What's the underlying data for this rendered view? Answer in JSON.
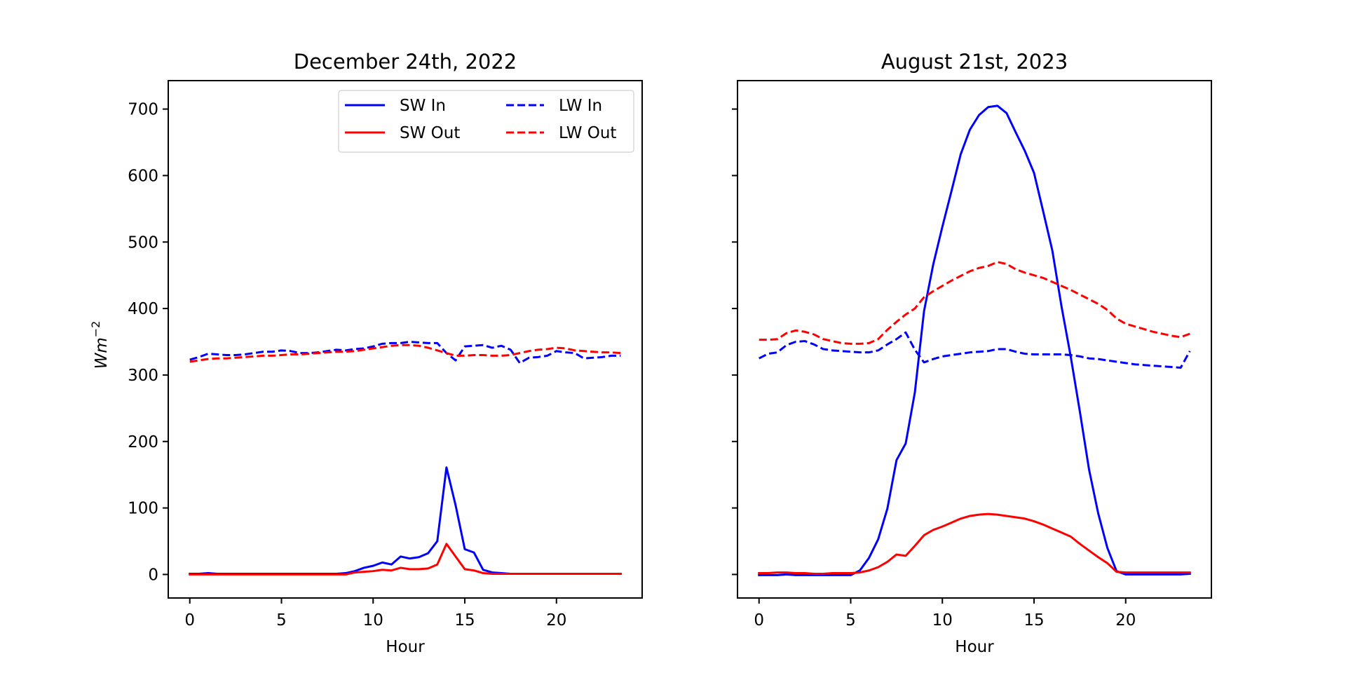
{
  "chart_data": [
    {
      "type": "line",
      "title": "December 24th, 2022",
      "xlabel": "Hour",
      "ylabel": "Wm^-2",
      "xlim": [
        -1.175,
        24.675
      ],
      "ylim": [
        -35.4,
        742.8
      ],
      "xticks": [
        0,
        5,
        10,
        15,
        20
      ],
      "yticks": [
        0,
        100,
        200,
        300,
        400,
        500,
        600,
        700
      ],
      "show_yticklabels": true,
      "grid": false,
      "legend": {
        "location": "upper right",
        "columns": 2
      },
      "x": [
        0,
        0.5,
        1,
        1.5,
        2,
        2.5,
        3,
        3.5,
        4,
        4.5,
        5,
        5.5,
        6,
        6.5,
        7,
        7.5,
        8,
        8.5,
        9,
        9.5,
        10,
        10.5,
        11,
        11.5,
        12,
        12.5,
        13,
        13.5,
        14,
        14.5,
        15,
        15.5,
        16,
        16.5,
        17,
        17.5,
        18,
        18.5,
        19,
        19.5,
        20,
        20.5,
        21,
        21.5,
        22,
        22.5,
        23,
        23.5
      ],
      "series": [
        {
          "name": "SW In",
          "color": "#0000ff",
          "style": "solid",
          "values": [
            1,
            1,
            2,
            1,
            1,
            1,
            1,
            1,
            1,
            1,
            1,
            1,
            1,
            1,
            1,
            1,
            1,
            2,
            5,
            10,
            13,
            18,
            15,
            27,
            24,
            26,
            32,
            50,
            161,
            104,
            38,
            33,
            7,
            3,
            2,
            1,
            1,
            1,
            1,
            1,
            1,
            1,
            1,
            1,
            1,
            1,
            1,
            1
          ]
        },
        {
          "name": "SW Out",
          "color": "#ff0000",
          "style": "solid",
          "values": [
            0,
            0,
            0,
            0,
            0,
            0,
            0,
            0,
            0,
            0,
            0,
            0,
            0,
            0,
            0,
            0,
            0,
            0,
            3,
            4,
            5,
            7,
            6,
            10,
            8,
            8,
            9,
            15,
            46,
            27,
            8,
            6,
            2,
            1,
            1,
            1,
            1,
            1,
            1,
            1,
            1,
            1,
            1,
            1,
            1,
            1,
            1,
            1
          ]
        },
        {
          "name": "LW In",
          "color": "#0000ff",
          "style": "dashed",
          "values": [
            323,
            327,
            332,
            331,
            330,
            330,
            331,
            333,
            335,
            335,
            337,
            336,
            333,
            333,
            334,
            336,
            338,
            337,
            339,
            340,
            343,
            347,
            348,
            348,
            350,
            349,
            348,
            348,
            333,
            322,
            343,
            344,
            345,
            341,
            344,
            338,
            318,
            326,
            327,
            329,
            336,
            334,
            333,
            325,
            326,
            327,
            329,
            329
          ]
        },
        {
          "name": "LW Out",
          "color": "#ff0000",
          "style": "dashed",
          "values": [
            320,
            322,
            324,
            325,
            325,
            326,
            327,
            328,
            329,
            329,
            330,
            331,
            331,
            332,
            333,
            334,
            335,
            335,
            336,
            338,
            340,
            342,
            344,
            345,
            345,
            344,
            341,
            337,
            333,
            329,
            329,
            330,
            330,
            329,
            329,
            330,
            333,
            336,
            338,
            339,
            341,
            340,
            337,
            336,
            335,
            334,
            334,
            333
          ]
        }
      ]
    },
    {
      "type": "line",
      "title": "August 21st, 2023",
      "xlabel": "Hour",
      "ylabel": "",
      "xlim": [
        -1.175,
        24.675
      ],
      "ylim": [
        -35.4,
        742.8
      ],
      "xticks": [
        0,
        5,
        10,
        15,
        20
      ],
      "yticks": [
        0,
        100,
        200,
        300,
        400,
        500,
        600,
        700
      ],
      "show_yticklabels": false,
      "grid": false,
      "x": [
        0,
        0.5,
        1,
        1.5,
        2,
        2.5,
        3,
        3.5,
        4,
        4.5,
        5,
        5.5,
        6,
        6.5,
        7,
        7.5,
        8,
        8.5,
        9,
        9.5,
        10,
        10.5,
        11,
        11.5,
        12,
        12.5,
        13,
        13.5,
        14,
        14.5,
        15,
        15.5,
        16,
        16.5,
        17,
        17.5,
        18,
        18.5,
        19,
        19.5,
        20,
        20.5,
        21,
        21.5,
        22,
        22.5,
        23,
        23.5
      ],
      "series": [
        {
          "name": "SW In",
          "color": "#0000ff",
          "style": "solid",
          "values": [
            -1,
            -1,
            -1,
            0,
            -1,
            -1,
            -1,
            -1,
            -1,
            -1,
            -1,
            6,
            25,
            53,
            99,
            172,
            197,
            274,
            396,
            466,
            523,
            577,
            632,
            669,
            691,
            703,
            705,
            694,
            665,
            637,
            604,
            546,
            487,
            403,
            328,
            245,
            158,
            92,
            40,
            5,
            0,
            0,
            0,
            0,
            0,
            0,
            0,
            1
          ]
        },
        {
          "name": "SW Out",
          "color": "#ff0000",
          "style": "solid",
          "values": [
            2,
            2,
            3,
            3,
            2,
            2,
            1,
            1,
            2,
            2,
            2,
            3,
            6,
            11,
            19,
            30,
            28,
            43,
            59,
            67,
            72,
            78,
            84,
            88,
            90,
            91,
            90,
            88,
            86,
            84,
            80,
            75,
            69,
            63,
            57,
            46,
            36,
            26,
            17,
            4,
            3,
            3,
            3,
            3,
            3,
            3,
            3,
            3
          ]
        },
        {
          "name": "LW In",
          "color": "#0000ff",
          "style": "dashed",
          "values": [
            325,
            332,
            334,
            345,
            350,
            351,
            346,
            339,
            337,
            336,
            335,
            334,
            334,
            337,
            346,
            354,
            364,
            338,
            319,
            324,
            328,
            330,
            332,
            334,
            335,
            336,
            339,
            339,
            335,
            332,
            331,
            331,
            331,
            331,
            330,
            328,
            325,
            324,
            322,
            320,
            318,
            316,
            315,
            314,
            313,
            312,
            311,
            336
          ]
        },
        {
          "name": "LW Out",
          "color": "#ff0000",
          "style": "dashed",
          "values": [
            353,
            353,
            354,
            363,
            367,
            365,
            361,
            354,
            351,
            348,
            347,
            347,
            348,
            354,
            368,
            380,
            391,
            400,
            417,
            426,
            434,
            442,
            449,
            456,
            461,
            464,
            470,
            467,
            459,
            454,
            450,
            446,
            440,
            434,
            428,
            421,
            414,
            407,
            398,
            385,
            377,
            373,
            369,
            365,
            362,
            359,
            357,
            362
          ]
        }
      ]
    }
  ]
}
